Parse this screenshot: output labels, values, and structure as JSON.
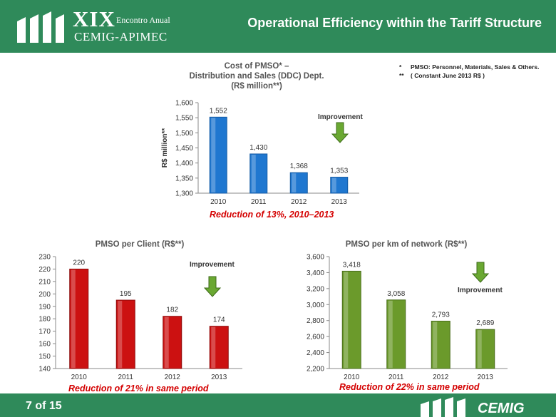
{
  "header": {
    "logo_numeral": "XIX",
    "logo_subtitle": "Encontro Anual",
    "logo_org": "CEMIG-APIMEC",
    "title": "Operational Efficiency within the Tariff Structure"
  },
  "footnotes": [
    {
      "mark": "*",
      "text": "PMSO: Personnel, Materials, Sales & Others."
    },
    {
      "mark": "**",
      "text": "( Constant June 2013 R$ )"
    }
  ],
  "colors": {
    "header_green": "#2f8a5a",
    "blue_bar": "#1f77d0",
    "red_bar": "#cc1111",
    "green_bar": "#6b9a2b",
    "arrow_green": "#6aa832",
    "reduction_red": "#d40000"
  },
  "chart_data": [
    {
      "type": "bar",
      "title_lines": [
        "Cost of PMSO* –",
        "Distribution and Sales (DDC) Dept.",
        "(R$ million**)"
      ],
      "ylabel": "R$ million**",
      "categories": [
        "2010",
        "2011",
        "2012",
        "2013"
      ],
      "values": [
        1552,
        1430,
        1368,
        1353
      ],
      "value_labels": [
        "1,552",
        "1,430",
        "1,368",
        "1,353"
      ],
      "ylim": [
        1300,
        1600
      ],
      "yticks": [
        1300,
        1350,
        1400,
        1450,
        1500,
        1550,
        1600
      ],
      "ytick_labels": [
        "1,300",
        "1,350",
        "1,400",
        "1,450",
        "1,500",
        "1,550",
        "1,600"
      ],
      "annotation": "Improvement",
      "footer": "Reduction of 13%, 2010–2013"
    },
    {
      "type": "bar",
      "title_lines": [
        "PMSO per Client (R$**)"
      ],
      "categories": [
        "2010",
        "2011",
        "2012",
        "2013"
      ],
      "values": [
        220,
        195,
        182,
        174
      ],
      "value_labels": [
        "220",
        "195",
        "182",
        "174"
      ],
      "ylim": [
        140,
        230
      ],
      "yticks": [
        140,
        150,
        160,
        170,
        180,
        190,
        200,
        210,
        220,
        230
      ],
      "ytick_labels": [
        "140",
        "150",
        "160",
        "170",
        "180",
        "190",
        "200",
        "210",
        "220",
        "230"
      ],
      "annotation": "Improvement",
      "footer": "Reduction of 21% in same period"
    },
    {
      "type": "bar",
      "title_lines": [
        "PMSO per km of network (R$**)"
      ],
      "categories": [
        "2010",
        "2011",
        "2012",
        "2013"
      ],
      "values": [
        3418,
        3058,
        2793,
        2689
      ],
      "value_labels": [
        "3,418",
        "3,058",
        "2,793",
        "2,689"
      ],
      "ylim": [
        2200,
        3600
      ],
      "yticks": [
        2200,
        2400,
        2600,
        2800,
        3000,
        3200,
        3400,
        3600
      ],
      "ytick_labels": [
        "2,200",
        "2,400",
        "2,600",
        "2,800",
        "3,000",
        "3,200",
        "3,400",
        "3,600"
      ],
      "annotation": "Improvement",
      "footer": "Reduction of 22% in same period"
    }
  ],
  "footer": {
    "page": "7 of 15",
    "logo_text": "CEMIG"
  }
}
